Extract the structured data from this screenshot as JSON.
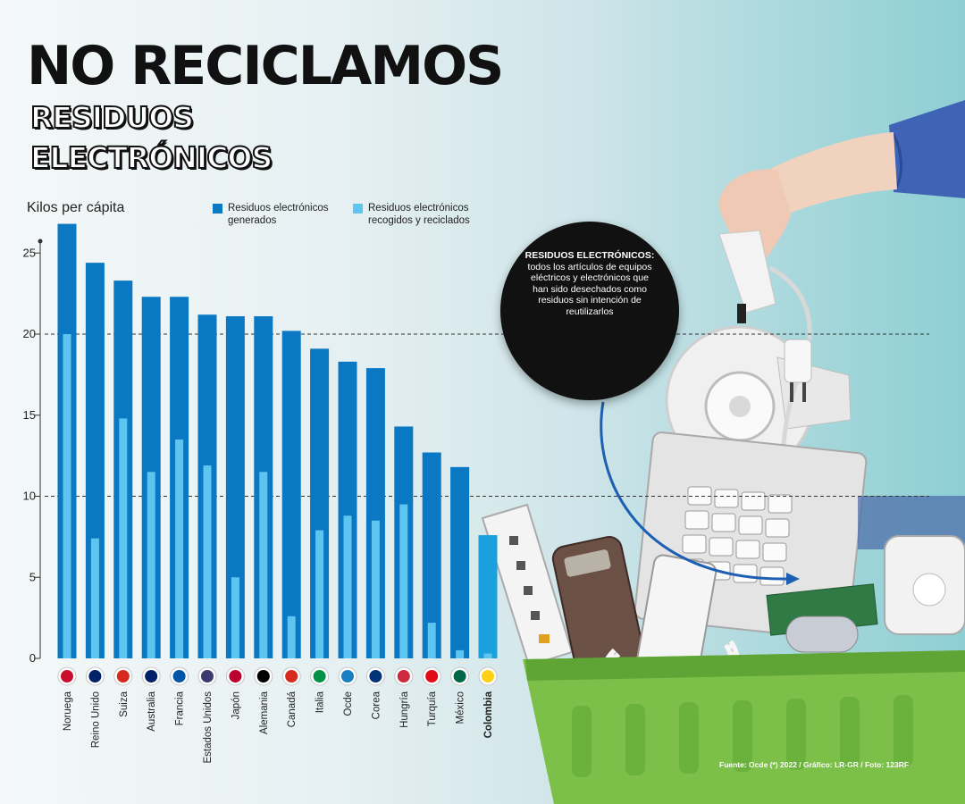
{
  "header": {
    "title": "NO RECICLAMOS",
    "subtitle_line1": "RESIDUOS",
    "subtitle_line2": "ELECTRÓNICOS"
  },
  "callout": {
    "title": "RESIDUOS ELECTRÓNICOS:",
    "text": "todos los artículos de equipos eléctricos y electrónicos que han sido desechados como residuos sin intención de reutilizarlos"
  },
  "source": "Fuente: Ocde (*) 2022 / Gráfico: LR-GR / Foto: 123RF",
  "colors": {
    "generated": "#0a78c2",
    "recycled": "#5ec4f0",
    "colombia_generated": "#1aa0dc",
    "basket": "#7cc04a"
  },
  "chart_data": {
    "type": "bar",
    "ylabel": "Kilos per cápita",
    "ylim": [
      0,
      25
    ],
    "yticks": [
      0,
      5,
      10,
      15,
      20,
      25
    ],
    "dashed_gridlines": [
      10,
      20
    ],
    "legend_placement": "top",
    "categories": [
      "Noruega",
      "Reino Unido",
      "Suiza",
      "Australia",
      "Francia",
      "Estados Unidos",
      "Japón",
      "Alemania",
      "Canadá",
      "Italia",
      "Ocde",
      "Corea",
      "Hungría",
      "Turquía",
      "México",
      "Colombia"
    ],
    "highlight_category": "Colombia",
    "series": [
      {
        "name": "Residuos electrónicos generados",
        "values": [
          26.8,
          24.4,
          23.3,
          22.3,
          22.3,
          21.2,
          21.1,
          21.1,
          20.2,
          19.1,
          18.3,
          17.9,
          14.3,
          12.7,
          11.8,
          7.6
        ]
      },
      {
        "name": "Residuos electrónicos recogidos y reciclados",
        "values": [
          20,
          7.4,
          14.8,
          11.5,
          13.5,
          11.9,
          5,
          11.5,
          2.6,
          7.9,
          8.8,
          8.5,
          9.5,
          2.2,
          0.5,
          0.3
        ]
      }
    ],
    "flags": [
      "norway-flag",
      "uk-flag",
      "switzerland-flag",
      "australia-flag",
      "france-flag",
      "usa-flag",
      "japan-flag",
      "germany-flag",
      "canada-flag",
      "italy-flag",
      "oecd-logo",
      "korea-flag",
      "hungary-flag",
      "turkey-flag",
      "mexico-flag",
      "colombia-flag"
    ]
  }
}
